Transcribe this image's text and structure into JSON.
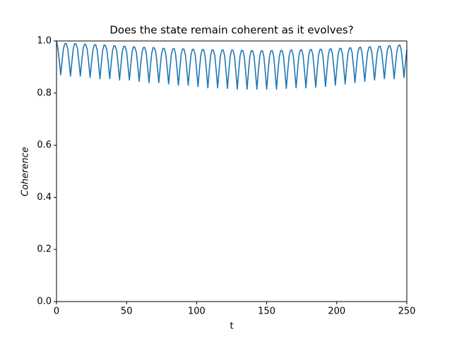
{
  "chart_data": {
    "type": "line",
    "title": "Does the state remain coherent as it evolves?",
    "xlabel": "t",
    "ylabel": "Coherence",
    "color": "#1f77b4",
    "xlim": [
      0,
      250
    ],
    "ylim": [
      0,
      1
    ],
    "xticks": [
      0,
      50,
      100,
      150,
      200,
      250
    ],
    "yticks": [
      {
        "value": 0,
        "label": "0.0"
      },
      0.2,
      0.4,
      0.6,
      0.8,
      {
        "value": 1,
        "label": "1.0"
      }
    ],
    "x": [
      0,
      1,
      2,
      3,
      4,
      5,
      6,
      7,
      8,
      9,
      10,
      11,
      12,
      13,
      14,
      15,
      16,
      17,
      18,
      19,
      20,
      21,
      22,
      23,
      24,
      25,
      26,
      27,
      28,
      29,
      30,
      31,
      32,
      33,
      34,
      35,
      36,
      37,
      38,
      39,
      40,
      41,
      42,
      43,
      44,
      45,
      46,
      47,
      48,
      49,
      50,
      51,
      52,
      53,
      54,
      55,
      56,
      57,
      58,
      59,
      60,
      61,
      62,
      63,
      64,
      65,
      66,
      67,
      68,
      69,
      70,
      71,
      72,
      73,
      74,
      75,
      76,
      77,
      78,
      79,
      80,
      81,
      82,
      83,
      84,
      85,
      86,
      87,
      88,
      89,
      90,
      91,
      92,
      93,
      94,
      95,
      96,
      97,
      98,
      99,
      100,
      101,
      102,
      103,
      104,
      105,
      106,
      107,
      108,
      109,
      110,
      111,
      112,
      113,
      114,
      115,
      116,
      117,
      118,
      119,
      120,
      121,
      122,
      123,
      124,
      125,
      126,
      127,
      128,
      129,
      130,
      131,
      132,
      133,
      134,
      135,
      136,
      137,
      138,
      139,
      140,
      141,
      142,
      143,
      144,
      145,
      146,
      147,
      148,
      149,
      150,
      151,
      152,
      153,
      154,
      155,
      156,
      157,
      158,
      159,
      160,
      161,
      162,
      163,
      164,
      165,
      166,
      167,
      168,
      169,
      170,
      171,
      172,
      173,
      174,
      175,
      176,
      177,
      178,
      179,
      180,
      181,
      182,
      183,
      184,
      185,
      186,
      187,
      188,
      189,
      190,
      191,
      192,
      193,
      194,
      195,
      196,
      197,
      198,
      199,
      200,
      201,
      202,
      203,
      204,
      205,
      206,
      207,
      208,
      209,
      210,
      211,
      212,
      213,
      214,
      215,
      216,
      217,
      218,
      219,
      220,
      221,
      222,
      223,
      224,
      225,
      226,
      227,
      228,
      229,
      230,
      231,
      232,
      233,
      234,
      235,
      236,
      237,
      238,
      239,
      240,
      241,
      242,
      243,
      244,
      245,
      246,
      247,
      248,
      249,
      250
    ],
    "values": [
      1.0,
      0.972,
      0.924,
      0.87,
      0.924,
      0.972,
      0.99,
      0.99,
      0.971,
      0.921,
      0.865,
      0.921,
      0.971,
      0.99,
      0.988,
      0.97,
      0.92,
      0.865,
      0.92,
      0.97,
      0.988,
      0.985,
      0.966,
      0.916,
      0.86,
      0.916,
      0.966,
      0.985,
      0.985,
      0.966,
      0.914,
      0.855,
      0.914,
      0.966,
      0.985,
      0.982,
      0.963,
      0.912,
      0.855,
      0.912,
      0.963,
      0.982,
      0.98,
      0.961,
      0.909,
      0.85,
      0.909,
      0.961,
      0.98,
      0.978,
      0.959,
      0.907,
      0.85,
      0.907,
      0.959,
      0.978,
      0.975,
      0.956,
      0.904,
      0.845,
      0.904,
      0.956,
      0.975,
      0.975,
      0.955,
      0.901,
      0.84,
      0.901,
      0.955,
      0.975,
      0.972,
      0.952,
      0.899,
      0.84,
      0.899,
      0.952,
      0.972,
      0.97,
      0.95,
      0.896,
      0.835,
      0.896,
      0.95,
      0.97,
      0.97,
      0.949,
      0.893,
      0.83,
      0.893,
      0.949,
      0.97,
      0.968,
      0.947,
      0.892,
      0.83,
      0.892,
      0.947,
      0.968,
      0.967,
      0.946,
      0.889,
      0.825,
      0.889,
      0.946,
      0.967,
      0.966,
      0.944,
      0.886,
      0.82,
      0.886,
      0.944,
      0.966,
      0.965,
      0.943,
      0.885,
      0.82,
      0.885,
      0.943,
      0.965,
      0.965,
      0.943,
      0.884,
      0.818,
      0.884,
      0.943,
      0.965,
      0.964,
      0.942,
      0.882,
      0.815,
      0.882,
      0.942,
      0.964,
      0.963,
      0.941,
      0.882,
      0.815,
      0.882,
      0.941,
      0.963,
      0.962,
      0.94,
      0.881,
      0.815,
      0.881,
      0.94,
      0.962,
      0.962,
      0.94,
      0.881,
      0.815,
      0.881,
      0.94,
      0.962,
      0.963,
      0.941,
      0.882,
      0.815,
      0.882,
      0.941,
      0.963,
      0.964,
      0.942,
      0.884,
      0.818,
      0.884,
      0.942,
      0.964,
      0.965,
      0.943,
      0.885,
      0.82,
      0.885,
      0.943,
      0.965,
      0.966,
      0.944,
      0.886,
      0.82,
      0.886,
      0.944,
      0.966,
      0.967,
      0.945,
      0.887,
      0.822,
      0.887,
      0.945,
      0.967,
      0.968,
      0.947,
      0.889,
      0.825,
      0.889,
      0.947,
      0.968,
      0.97,
      0.949,
      0.893,
      0.83,
      0.893,
      0.949,
      0.97,
      0.972,
      0.951,
      0.897,
      0.835,
      0.897,
      0.951,
      0.972,
      0.974,
      0.954,
      0.9,
      0.84,
      0.9,
      0.954,
      0.974,
      0.976,
      0.956,
      0.904,
      0.845,
      0.904,
      0.956,
      0.976,
      0.978,
      0.958,
      0.907,
      0.85,
      0.907,
      0.958,
      0.978,
      0.98,
      0.961,
      0.911,
      0.855,
      0.911,
      0.961,
      0.98,
      0.982,
      0.963,
      0.912,
      0.855,
      0.912,
      0.963,
      0.982,
      0.985,
      0.966,
      0.916,
      0.86,
      0.916,
      0.966
    ]
  }
}
